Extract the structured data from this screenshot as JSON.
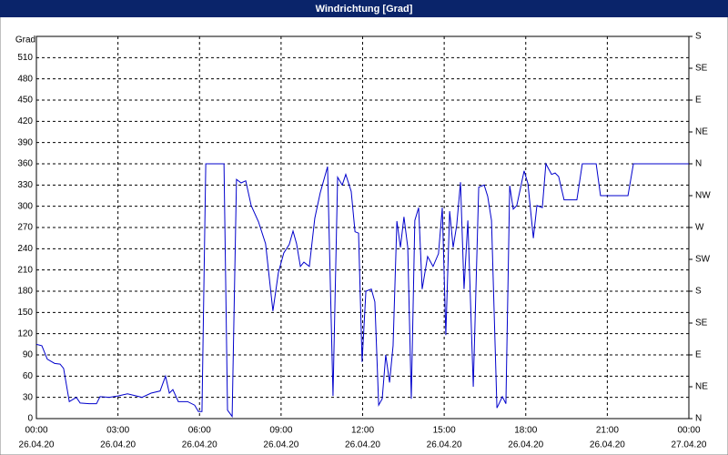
{
  "chart_data": {
    "type": "line",
    "title": "Windrichtung [Grad]",
    "y_label": "Grad",
    "x": [
      0,
      0.2,
      0.4,
      0.67,
      0.87,
      1.0,
      1.21,
      1.47,
      1.61,
      1.94,
      2.21,
      2.34,
      2.68,
      3.0,
      3.35,
      3.68,
      3.88,
      4.22,
      4.55,
      4.75,
      4.89,
      5.02,
      5.22,
      5.56,
      5.82,
      5.96,
      6.09,
      6.23,
      6.9,
      7.03,
      7.2,
      7.36,
      7.53,
      7.7,
      7.9,
      8.17,
      8.43,
      8.7,
      8.9,
      9.1,
      9.3,
      9.44,
      9.57,
      9.71,
      9.84,
      10.04,
      10.24,
      10.44,
      10.71,
      10.91,
      11.08,
      11.25,
      11.38,
      11.58,
      11.72,
      11.85,
      11.98,
      12.12,
      12.32,
      12.45,
      12.59,
      12.72,
      12.85,
      12.99,
      13.12,
      13.26,
      13.39,
      13.52,
      13.66,
      13.79,
      13.92,
      14.06,
      14.19,
      14.39,
      14.59,
      14.79,
      14.93,
      15.06,
      15.2,
      15.33,
      15.46,
      15.6,
      15.73,
      15.87,
      16.07,
      16.27,
      16.47,
      16.6,
      16.74,
      16.94,
      17.14,
      17.27,
      17.41,
      17.54,
      17.67,
      17.94,
      18.08,
      18.28,
      18.41,
      18.61,
      18.74,
      18.95,
      19.08,
      19.21,
      19.41,
      19.88,
      20.08,
      20.59,
      20.75,
      21.76,
      21.96,
      24.0
    ],
    "values": [
      105,
      103,
      84,
      78,
      77,
      71,
      24,
      30,
      22,
      21,
      21,
      31,
      30,
      32,
      35,
      32,
      30,
      36,
      39,
      60,
      36,
      41,
      24,
      24,
      19,
      10,
      10,
      360,
      360,
      12,
      3,
      338,
      333,
      336,
      301,
      278,
      247,
      152,
      206,
      234,
      246,
      265,
      247,
      215,
      221,
      215,
      283,
      319,
      356,
      32,
      341,
      330,
      345,
      321,
      264,
      262,
      80,
      180,
      183,
      165,
      19,
      28,
      90,
      51,
      103,
      279,
      242,
      285,
      242,
      28,
      280,
      298,
      183,
      229,
      215,
      233,
      298,
      118,
      293,
      242,
      273,
      334,
      183,
      280,
      45,
      327,
      330,
      314,
      280,
      15,
      31,
      21,
      329,
      296,
      301,
      350,
      332,
      255,
      301,
      298,
      360,
      345,
      347,
      342,
      309,
      309,
      360,
      360,
      315,
      315,
      360,
      360
    ],
    "color": "#0000cc",
    "xlim": [
      0,
      24
    ],
    "xticks": [
      {
        "value": 0,
        "label": "00:00"
      },
      {
        "value": 3,
        "label": "03:00"
      },
      {
        "value": 6,
        "label": "06:00"
      },
      {
        "value": 9,
        "label": "09:00"
      },
      {
        "value": 12,
        "label": "12:00"
      },
      {
        "value": 15,
        "label": "15:00"
      },
      {
        "value": 18,
        "label": "18:00"
      },
      {
        "value": 21,
        "label": "21:00"
      },
      {
        "value": 24,
        "label": "00:00"
      }
    ],
    "xtick_dates": [
      "26.04.20",
      "26.04.20",
      "26.04.20",
      "26.04.20",
      "26.04.20",
      "26.04.20",
      "26.04.20",
      "26.04.20",
      "27.04.20"
    ],
    "ylim": [
      0,
      540
    ],
    "yticks": [
      0,
      30,
      60,
      90,
      120,
      150,
      180,
      210,
      240,
      270,
      300,
      330,
      360,
      390,
      420,
      450,
      480,
      510
    ],
    "y2lim": [
      0,
      540
    ],
    "y2ticks": [
      {
        "value": 0,
        "label": "N"
      },
      {
        "value": 45,
        "label": "NE"
      },
      {
        "value": 90,
        "label": "E"
      },
      {
        "value": 135,
        "label": "SE"
      },
      {
        "value": 180,
        "label": "S"
      },
      {
        "value": 225,
        "label": "SW"
      },
      {
        "value": 270,
        "label": "W"
      },
      {
        "value": 315,
        "label": "NW"
      },
      {
        "value": 360,
        "label": "N"
      },
      {
        "value": 405,
        "label": "NE"
      },
      {
        "value": 450,
        "label": "E"
      },
      {
        "value": 495,
        "label": "SE"
      },
      {
        "value": 540,
        "label": "S"
      }
    ],
    "grid": true
  }
}
